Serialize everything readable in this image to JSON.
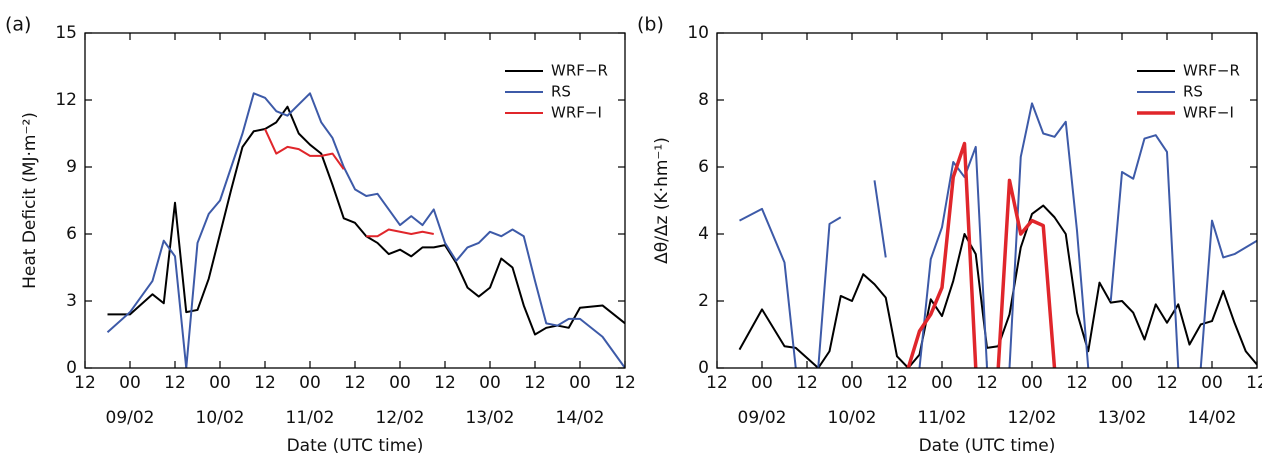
{
  "chart_data": [
    {
      "type": "line",
      "panel_label": "(a)",
      "ylabel": "Heat Deficit (MJ·m⁻²)",
      "xlabel": "Date (UTC time)",
      "xlim": [
        0,
        144
      ],
      "ylim": [
        0,
        15
      ],
      "yticks": [
        0,
        3,
        6,
        9,
        12,
        15
      ],
      "xticks": [
        {
          "value": 0,
          "label": "12"
        },
        {
          "value": 12,
          "label": "00"
        },
        {
          "value": 24,
          "label": "12"
        },
        {
          "value": 36,
          "label": "00"
        },
        {
          "value": 48,
          "label": "12"
        },
        {
          "value": 60,
          "label": "00"
        },
        {
          "value": 72,
          "label": "12"
        },
        {
          "value": 84,
          "label": "00"
        },
        {
          "value": 96,
          "label": "12"
        },
        {
          "value": 108,
          "label": "00"
        },
        {
          "value": 120,
          "label": "12"
        },
        {
          "value": 132,
          "label": "00"
        },
        {
          "value": 144,
          "label": "12"
        }
      ],
      "date_ticks": [
        {
          "value": 12,
          "label": "09/02"
        },
        {
          "value": 36,
          "label": "10/02"
        },
        {
          "value": 60,
          "label": "11/02"
        },
        {
          "value": 84,
          "label": "12/02"
        },
        {
          "value": 108,
          "label": "13/02"
        },
        {
          "value": 132,
          "label": "14/02"
        }
      ],
      "legend": "upper right",
      "series": [
        {
          "name": "WRF−R",
          "color": "#000000",
          "line_width": 2,
          "x": [
            6,
            12,
            18,
            21,
            24,
            27,
            30,
            33,
            36,
            39,
            42,
            45,
            48,
            51,
            54,
            57,
            60,
            63,
            66,
            69,
            72,
            75,
            78,
            81,
            84,
            87,
            90,
            93,
            96,
            99,
            102,
            105,
            108,
            111,
            114,
            117,
            120,
            123,
            126,
            129,
            132,
            138,
            144
          ],
          "values": [
            2.4,
            2.4,
            3.3,
            2.9,
            7.4,
            2.5,
            2.6,
            4.0,
            6.0,
            8.0,
            9.9,
            10.6,
            10.7,
            11.0,
            11.7,
            10.5,
            10.0,
            9.6,
            8.2,
            6.7,
            6.5,
            5.9,
            5.6,
            5.1,
            5.3,
            5.0,
            5.4,
            5.4,
            5.5,
            4.7,
            3.6,
            3.2,
            3.6,
            4.9,
            4.5,
            2.8,
            1.5,
            1.8,
            1.9,
            1.8,
            2.7,
            2.8,
            2.0
          ]
        },
        {
          "name": "RS",
          "color": "#3d5aa8",
          "line_width": 2,
          "x": [
            6,
            12,
            18,
            21,
            24,
            27,
            30,
            33,
            36,
            39,
            42,
            45,
            48,
            51,
            54,
            57,
            60,
            63,
            66,
            69,
            72,
            75,
            78,
            81,
            84,
            87,
            90,
            93,
            96,
            99,
            102,
            105,
            108,
            111,
            114,
            117,
            120,
            123,
            126,
            129,
            132,
            138,
            144
          ],
          "values": [
            1.6,
            2.5,
            3.9,
            5.7,
            5.0,
            0,
            5.6,
            6.9,
            7.5,
            9.0,
            10.5,
            12.3,
            12.1,
            11.5,
            11.3,
            11.8,
            12.3,
            11.0,
            10.3,
            9.0,
            8.0,
            7.7,
            7.8,
            7.1,
            6.4,
            6.8,
            6.4,
            7.1,
            5.6,
            4.8,
            5.4,
            5.6,
            6.1,
            5.9,
            6.2,
            5.9,
            3.9,
            2.0,
            1.9,
            2.2,
            2.2,
            1.4,
            0
          ]
        },
        {
          "name": "WRF−I",
          "color": "#e0262b",
          "line_width": 2,
          "x": [
            48,
            51,
            54,
            57,
            60,
            63,
            66,
            69,
            72,
            75,
            78,
            81,
            84,
            87,
            90,
            93
          ],
          "values": [
            10.7,
            9.6,
            9.9,
            9.8,
            9.5,
            9.5,
            9.6,
            8.9,
            null,
            5.9,
            5.9,
            6.2,
            6.1,
            6.0,
            6.1,
            6.0
          ]
        }
      ]
    },
    {
      "type": "line",
      "panel_label": "(b)",
      "ylabel": "Δθ/Δz (K·hm⁻¹)",
      "xlabel": "Date (UTC time)",
      "xlim": [
        0,
        144
      ],
      "ylim": [
        0,
        10
      ],
      "yticks": [
        0,
        2,
        4,
        6,
        8,
        10
      ],
      "xticks": [
        {
          "value": 0,
          "label": "12"
        },
        {
          "value": 12,
          "label": "00"
        },
        {
          "value": 24,
          "label": "12"
        },
        {
          "value": 36,
          "label": "00"
        },
        {
          "value": 48,
          "label": "12"
        },
        {
          "value": 60,
          "label": "00"
        },
        {
          "value": 72,
          "label": "12"
        },
        {
          "value": 84,
          "label": "00"
        },
        {
          "value": 96,
          "label": "12"
        },
        {
          "value": 108,
          "label": "00"
        },
        {
          "value": 120,
          "label": "12"
        },
        {
          "value": 132,
          "label": "00"
        },
        {
          "value": 144,
          "label": "12"
        }
      ],
      "date_ticks": [
        {
          "value": 12,
          "label": "09/02"
        },
        {
          "value": 36,
          "label": "10/02"
        },
        {
          "value": 60,
          "label": "11/02"
        },
        {
          "value": 84,
          "label": "12/02"
        },
        {
          "value": 108,
          "label": "13/02"
        },
        {
          "value": 132,
          "label": "14/02"
        }
      ],
      "legend": "upper right",
      "series": [
        {
          "name": "WRF−R",
          "color": "#000000",
          "line_width": 2,
          "x": [
            6,
            12,
            18,
            21,
            27,
            30,
            33,
            36,
            39,
            42,
            45,
            48,
            51,
            54,
            57,
            60,
            63,
            66,
            69,
            72,
            75,
            78,
            81,
            84,
            87,
            90,
            93,
            96,
            99,
            102,
            105,
            108,
            111,
            114,
            117,
            120,
            123,
            126,
            129,
            132,
            135,
            138,
            141,
            144
          ],
          "values": [
            0.55,
            1.75,
            0.65,
            0.6,
            0,
            0.5,
            2.15,
            2.0,
            2.8,
            2.5,
            2.1,
            0.35,
            0,
            0.4,
            2.05,
            1.55,
            2.6,
            4.0,
            3.4,
            0.6,
            0.65,
            1.6,
            3.6,
            4.6,
            4.85,
            4.5,
            4.0,
            1.65,
            0.5,
            2.55,
            1.95,
            2.0,
            1.65,
            0.85,
            1.9,
            1.35,
            1.9,
            0.7,
            1.3,
            1.4,
            2.3,
            1.35,
            0.5,
            0.1
          ]
        },
        {
          "name": "RS",
          "color": "#3d5aa8",
          "line_width": 2,
          "x": [
            6,
            12,
            18,
            21,
            24,
            27,
            30,
            33,
            36,
            42,
            45,
            48,
            54,
            57,
            60,
            63,
            66,
            69,
            72,
            75,
            78,
            81,
            84,
            87,
            90,
            93,
            96,
            99,
            102,
            105,
            108,
            111,
            114,
            117,
            120,
            123,
            126,
            129,
            132,
            135,
            138,
            144
          ],
          "values": [
            4.4,
            4.75,
            3.15,
            0,
            null,
            0,
            4.3,
            4.5,
            null,
            5.6,
            3.3,
            null,
            0,
            3.25,
            4.2,
            6.15,
            5.7,
            6.6,
            0,
            null,
            0,
            6.3,
            7.9,
            7.0,
            6.9,
            7.35,
            4.1,
            0,
            null,
            2.0,
            5.85,
            5.65,
            6.85,
            6.95,
            6.45,
            0,
            null,
            0,
            4.4,
            3.3,
            3.4,
            3.8
          ]
        },
        {
          "name": "WRF−I",
          "color": "#e0262b",
          "line_width": 3.5,
          "x": [
            51,
            54,
            57,
            60,
            63,
            66,
            69,
            72,
            75,
            78,
            81,
            84,
            87,
            90
          ],
          "values": [
            0,
            1.1,
            1.6,
            2.4,
            5.7,
            6.7,
            0,
            null,
            0,
            5.6,
            4.0,
            4.4,
            4.25,
            0
          ]
        }
      ]
    }
  ]
}
